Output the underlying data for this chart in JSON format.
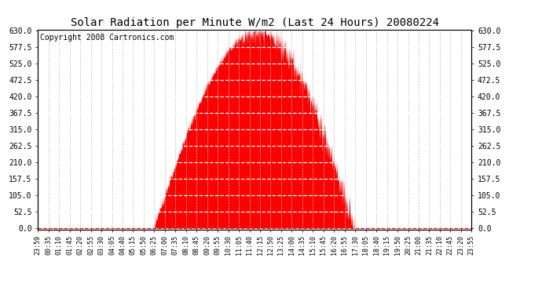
{
  "title": "Solar Radiation per Minute W/m2 (Last 24 Hours) 20080224",
  "copyright": "Copyright 2008 Cartronics.com",
  "bar_color": "#FF0000",
  "background_color": "#FFFFFF",
  "grid_color_x": "#C0C0C0",
  "grid_color_y": "#FFFFFF",
  "dashed_line_color": "#FF0000",
  "ylim": [
    -5,
    635
  ],
  "yticks": [
    0.0,
    52.5,
    105.0,
    157.5,
    210.0,
    262.5,
    315.0,
    367.5,
    420.0,
    472.5,
    525.0,
    577.5,
    630.0
  ],
  "x_tick_labels": [
    "23:59",
    "00:35",
    "01:10",
    "01:45",
    "02:20",
    "02:55",
    "03:30",
    "04:05",
    "04:40",
    "05:15",
    "05:50",
    "06:25",
    "07:00",
    "07:35",
    "08:10",
    "08:45",
    "09:20",
    "09:55",
    "10:30",
    "11:05",
    "11:40",
    "12:15",
    "12:50",
    "13:25",
    "14:00",
    "14:35",
    "15:10",
    "15:45",
    "16:20",
    "16:55",
    "17:30",
    "18:05",
    "18:40",
    "19:15",
    "19:50",
    "20:25",
    "21:00",
    "21:35",
    "22:10",
    "22:45",
    "23:20",
    "23:55"
  ],
  "num_points": 1440,
  "sunrise_hour": 6.417,
  "sunset_hour": 17.5,
  "peak_hour": 12.15,
  "peak_val": 627,
  "title_fontsize": 10,
  "tick_fontsize": 7,
  "copyright_fontsize": 7
}
